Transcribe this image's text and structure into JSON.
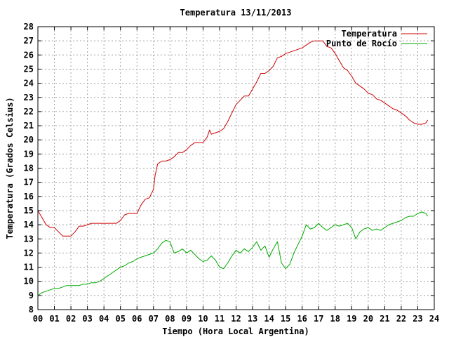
{
  "chart_data": {
    "type": "line",
    "title": "Temperatura 13/11/2013",
    "xlabel": "Tiempo (Hora Local Argentina)",
    "ylabel": "Temperatura (Grados Celsius)",
    "xlim": [
      0,
      24
    ],
    "ylim": [
      8,
      28
    ],
    "x_ticks": [
      "00",
      "01",
      "02",
      "03",
      "04",
      "05",
      "06",
      "07",
      "08",
      "09",
      "10",
      "11",
      "12",
      "13",
      "14",
      "15",
      "16",
      "17",
      "18",
      "19",
      "20",
      "21",
      "22",
      "23",
      "24"
    ],
    "y_ticks": [
      8,
      9,
      10,
      11,
      12,
      13,
      14,
      15,
      16,
      17,
      18,
      19,
      20,
      21,
      22,
      23,
      24,
      25,
      26,
      27,
      28
    ],
    "grid": true,
    "legend_position": "top-right",
    "series": [
      {
        "name": "Temperatura",
        "color": "#cc0000",
        "points": [
          [
            0,
            15.0
          ],
          [
            0.25,
            14.5
          ],
          [
            0.5,
            14.0
          ],
          [
            0.75,
            13.8
          ],
          [
            1.0,
            13.8
          ],
          [
            1.25,
            13.5
          ],
          [
            1.5,
            13.2
          ],
          [
            1.75,
            13.2
          ],
          [
            2.0,
            13.2
          ],
          [
            2.25,
            13.5
          ],
          [
            2.5,
            13.9
          ],
          [
            2.75,
            13.9
          ],
          [
            3.0,
            14.0
          ],
          [
            3.25,
            14.1
          ],
          [
            3.5,
            14.1
          ],
          [
            3.75,
            14.1
          ],
          [
            4.0,
            14.1
          ],
          [
            4.25,
            14.1
          ],
          [
            4.5,
            14.1
          ],
          [
            4.75,
            14.1
          ],
          [
            5.0,
            14.3
          ],
          [
            5.25,
            14.7
          ],
          [
            5.5,
            14.8
          ],
          [
            5.75,
            14.8
          ],
          [
            6.0,
            14.8
          ],
          [
            6.25,
            15.4
          ],
          [
            6.5,
            15.8
          ],
          [
            6.75,
            15.9
          ],
          [
            7.0,
            16.5
          ],
          [
            7.1,
            17.5
          ],
          [
            7.25,
            18.3
          ],
          [
            7.5,
            18.5
          ],
          [
            7.75,
            18.5
          ],
          [
            8.0,
            18.6
          ],
          [
            8.25,
            18.8
          ],
          [
            8.5,
            19.1
          ],
          [
            8.75,
            19.1
          ],
          [
            9.0,
            19.3
          ],
          [
            9.25,
            19.6
          ],
          [
            9.5,
            19.8
          ],
          [
            9.75,
            19.8
          ],
          [
            10.0,
            19.8
          ],
          [
            10.25,
            20.2
          ],
          [
            10.4,
            20.7
          ],
          [
            10.5,
            20.4
          ],
          [
            10.75,
            20.5
          ],
          [
            11.0,
            20.6
          ],
          [
            11.25,
            20.8
          ],
          [
            11.5,
            21.3
          ],
          [
            11.75,
            21.9
          ],
          [
            12.0,
            22.5
          ],
          [
            12.25,
            22.8
          ],
          [
            12.5,
            23.1
          ],
          [
            12.75,
            23.1
          ],
          [
            13.0,
            23.6
          ],
          [
            13.25,
            24.1
          ],
          [
            13.5,
            24.7
          ],
          [
            13.75,
            24.7
          ],
          [
            14.0,
            24.9
          ],
          [
            14.25,
            25.2
          ],
          [
            14.5,
            25.8
          ],
          [
            14.75,
            25.9
          ],
          [
            15.0,
            26.1
          ],
          [
            15.25,
            26.2
          ],
          [
            15.5,
            26.3
          ],
          [
            15.75,
            26.4
          ],
          [
            16.0,
            26.5
          ],
          [
            16.25,
            26.7
          ],
          [
            16.5,
            26.9
          ],
          [
            16.75,
            27.0
          ],
          [
            17.0,
            27.0
          ],
          [
            17.25,
            27.0
          ],
          [
            17.5,
            26.6
          ],
          [
            17.75,
            26.5
          ],
          [
            18.0,
            26.1
          ],
          [
            18.25,
            25.6
          ],
          [
            18.5,
            25.1
          ],
          [
            18.75,
            24.9
          ],
          [
            19.0,
            24.5
          ],
          [
            19.25,
            24.0
          ],
          [
            19.5,
            23.8
          ],
          [
            19.75,
            23.6
          ],
          [
            20.0,
            23.3
          ],
          [
            20.25,
            23.2
          ],
          [
            20.5,
            22.9
          ],
          [
            20.75,
            22.8
          ],
          [
            21.0,
            22.6
          ],
          [
            21.25,
            22.4
          ],
          [
            21.5,
            22.2
          ],
          [
            21.75,
            22.1
          ],
          [
            22.0,
            21.9
          ],
          [
            22.25,
            21.7
          ],
          [
            22.5,
            21.4
          ],
          [
            22.75,
            21.2
          ],
          [
            23.0,
            21.1
          ],
          [
            23.25,
            21.1
          ],
          [
            23.5,
            21.2
          ],
          [
            23.6,
            21.4
          ]
        ]
      },
      {
        "name": "Punto de Rocío",
        "color": "#00aa00",
        "points": [
          [
            0,
            9.0
          ],
          [
            0.25,
            9.2
          ],
          [
            0.5,
            9.3
          ],
          [
            0.75,
            9.4
          ],
          [
            1.0,
            9.5
          ],
          [
            1.25,
            9.5
          ],
          [
            1.5,
            9.6
          ],
          [
            1.75,
            9.7
          ],
          [
            2.0,
            9.7
          ],
          [
            2.25,
            9.7
          ],
          [
            2.5,
            9.7
          ],
          [
            2.75,
            9.8
          ],
          [
            3.0,
            9.8
          ],
          [
            3.25,
            9.9
          ],
          [
            3.5,
            9.9
          ],
          [
            3.75,
            10.0
          ],
          [
            4.0,
            10.2
          ],
          [
            4.25,
            10.4
          ],
          [
            4.5,
            10.6
          ],
          [
            4.75,
            10.8
          ],
          [
            5.0,
            11.0
          ],
          [
            5.25,
            11.1
          ],
          [
            5.5,
            11.3
          ],
          [
            5.75,
            11.4
          ],
          [
            6.0,
            11.6
          ],
          [
            6.25,
            11.7
          ],
          [
            6.5,
            11.8
          ],
          [
            6.75,
            11.9
          ],
          [
            7.0,
            12.0
          ],
          [
            7.25,
            12.3
          ],
          [
            7.5,
            12.7
          ],
          [
            7.75,
            12.9
          ],
          [
            8.0,
            12.8
          ],
          [
            8.25,
            12.0
          ],
          [
            8.5,
            12.1
          ],
          [
            8.75,
            12.3
          ],
          [
            9.0,
            12.0
          ],
          [
            9.25,
            12.2
          ],
          [
            9.5,
            11.9
          ],
          [
            9.75,
            11.6
          ],
          [
            10.0,
            11.4
          ],
          [
            10.25,
            11.5
          ],
          [
            10.5,
            11.8
          ],
          [
            10.75,
            11.5
          ],
          [
            11.0,
            11.0
          ],
          [
            11.25,
            10.9
          ],
          [
            11.5,
            11.3
          ],
          [
            11.75,
            11.8
          ],
          [
            12.0,
            12.2
          ],
          [
            12.25,
            12.0
          ],
          [
            12.5,
            12.3
          ],
          [
            12.75,
            12.1
          ],
          [
            13.0,
            12.4
          ],
          [
            13.25,
            12.8
          ],
          [
            13.5,
            12.2
          ],
          [
            13.75,
            12.5
          ],
          [
            14.0,
            11.7
          ],
          [
            14.25,
            12.3
          ],
          [
            14.5,
            12.8
          ],
          [
            14.75,
            11.3
          ],
          [
            15.0,
            10.9
          ],
          [
            15.25,
            11.2
          ],
          [
            15.5,
            12.0
          ],
          [
            15.75,
            12.6
          ],
          [
            16.0,
            13.2
          ],
          [
            16.25,
            14.0
          ],
          [
            16.5,
            13.7
          ],
          [
            16.75,
            13.8
          ],
          [
            17.0,
            14.1
          ],
          [
            17.25,
            13.8
          ],
          [
            17.5,
            13.6
          ],
          [
            17.75,
            13.8
          ],
          [
            18.0,
            14.0
          ],
          [
            18.25,
            13.9
          ],
          [
            18.5,
            14.0
          ],
          [
            18.75,
            14.1
          ],
          [
            19.0,
            13.8
          ],
          [
            19.25,
            13.0
          ],
          [
            19.5,
            13.5
          ],
          [
            19.75,
            13.7
          ],
          [
            20.0,
            13.8
          ],
          [
            20.25,
            13.6
          ],
          [
            20.5,
            13.7
          ],
          [
            20.75,
            13.6
          ],
          [
            21.0,
            13.8
          ],
          [
            21.25,
            14.0
          ],
          [
            21.5,
            14.1
          ],
          [
            21.75,
            14.2
          ],
          [
            22.0,
            14.3
          ],
          [
            22.25,
            14.5
          ],
          [
            22.5,
            14.6
          ],
          [
            22.75,
            14.6
          ],
          [
            23.0,
            14.8
          ],
          [
            23.25,
            14.9
          ],
          [
            23.5,
            14.8
          ],
          [
            23.6,
            14.6
          ]
        ]
      }
    ]
  }
}
